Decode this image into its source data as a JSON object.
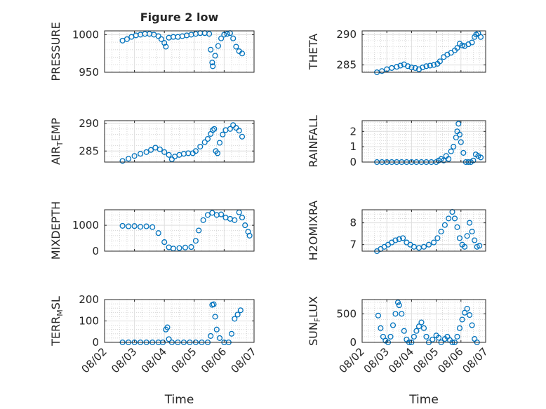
{
  "figure": {
    "title": "Figure 2 low",
    "xlabel": "Time",
    "x_tick_labels": [
      "08/02",
      "08/03",
      "08/04",
      "08/05",
      "08/06",
      "08/07"
    ]
  },
  "chart_data": [
    {
      "type": "scatter",
      "title": "Figure 2 low",
      "xlabel": "",
      "ylabel": "PRESSURE",
      "x_range": [
        "08/02",
        "08/07"
      ],
      "ylim": [
        950,
        1005
      ],
      "yticks": [
        950,
        1000
      ],
      "grid": "on",
      "marker": "o",
      "color": "#0072bd",
      "points": [
        [
          2.6,
          992
        ],
        [
          2.75,
          994
        ],
        [
          2.9,
          997
        ],
        [
          3.05,
          999
        ],
        [
          3.2,
          1000
        ],
        [
          3.35,
          1001
        ],
        [
          3.5,
          1001
        ],
        [
          3.65,
          1000
        ],
        [
          3.8,
          998
        ],
        [
          3.9,
          994
        ],
        [
          4.0,
          989
        ],
        [
          4.05,
          984
        ],
        [
          4.15,
          996
        ],
        [
          4.3,
          997
        ],
        [
          4.45,
          997
        ],
        [
          4.6,
          998
        ],
        [
          4.75,
          999
        ],
        [
          4.9,
          1000
        ],
        [
          5.05,
          1001
        ],
        [
          5.2,
          1002
        ],
        [
          5.35,
          1002
        ],
        [
          5.5,
          1001
        ],
        [
          5.55,
          980
        ],
        [
          5.6,
          963
        ],
        [
          5.62,
          958
        ],
        [
          5.7,
          972
        ],
        [
          5.8,
          985
        ],
        [
          5.9,
          995
        ],
        [
          6.0,
          1000
        ],
        [
          6.1,
          1001
        ],
        [
          6.2,
          1002
        ],
        [
          6.3,
          995
        ],
        [
          6.4,
          984
        ],
        [
          6.5,
          978
        ],
        [
          6.6,
          975
        ]
      ]
    },
    {
      "type": "scatter",
      "title": "",
      "xlabel": "",
      "ylabel": "THETA",
      "x_range": [
        "08/02",
        "08/07"
      ],
      "ylim": [
        283.8,
        290.6
      ],
      "yticks": [
        285,
        290
      ],
      "grid": "on",
      "marker": "o",
      "color": "#0072bd",
      "points": [
        [
          2.6,
          283.8
        ],
        [
          2.8,
          284.0
        ],
        [
          3.0,
          284.3
        ],
        [
          3.2,
          284.5
        ],
        [
          3.4,
          284.7
        ],
        [
          3.55,
          284.9
        ],
        [
          3.7,
          285.1
        ],
        [
          3.85,
          284.8
        ],
        [
          4.0,
          284.6
        ],
        [
          4.15,
          284.5
        ],
        [
          4.3,
          284.3
        ],
        [
          4.45,
          284.6
        ],
        [
          4.6,
          284.8
        ],
        [
          4.75,
          284.9
        ],
        [
          4.9,
          285.0
        ],
        [
          5.05,
          285.2
        ],
        [
          5.15,
          285.6
        ],
        [
          5.3,
          286.3
        ],
        [
          5.45,
          286.7
        ],
        [
          5.6,
          287.0
        ],
        [
          5.75,
          287.4
        ],
        [
          5.85,
          287.8
        ],
        [
          5.95,
          288.5
        ],
        [
          6.05,
          288.2
        ],
        [
          6.15,
          288.1
        ],
        [
          6.3,
          288.4
        ],
        [
          6.45,
          288.7
        ],
        [
          6.55,
          289.6
        ],
        [
          6.62,
          290.0
        ],
        [
          6.7,
          290.2
        ],
        [
          6.8,
          289.6
        ]
      ]
    },
    {
      "type": "scatter",
      "title": "",
      "xlabel": "",
      "ylabel": "AIR_TEMP",
      "x_range": [
        "08/02",
        "08/07"
      ],
      "ylim": [
        283.0,
        290.5
      ],
      "yticks": [
        285,
        290
      ],
      "grid": "on",
      "marker": "o",
      "color": "#0072bd",
      "points": [
        [
          2.6,
          283.2
        ],
        [
          2.8,
          283.6
        ],
        [
          3.0,
          284.1
        ],
        [
          3.2,
          284.5
        ],
        [
          3.4,
          284.8
        ],
        [
          3.55,
          285.2
        ],
        [
          3.7,
          285.6
        ],
        [
          3.85,
          285.3
        ],
        [
          4.0,
          284.8
        ],
        [
          4.15,
          284.3
        ],
        [
          4.25,
          283.5
        ],
        [
          4.35,
          284.0
        ],
        [
          4.5,
          284.3
        ],
        [
          4.65,
          284.5
        ],
        [
          4.8,
          284.6
        ],
        [
          4.95,
          284.6
        ],
        [
          5.05,
          285.0
        ],
        [
          5.2,
          285.8
        ],
        [
          5.35,
          286.6
        ],
        [
          5.45,
          287.2
        ],
        [
          5.55,
          288.1
        ],
        [
          5.62,
          288.8
        ],
        [
          5.67,
          289.0
        ],
        [
          5.72,
          285.0
        ],
        [
          5.78,
          284.6
        ],
        [
          5.85,
          286.5
        ],
        [
          5.95,
          288.0
        ],
        [
          6.05,
          288.8
        ],
        [
          6.2,
          289.0
        ],
        [
          6.3,
          289.7
        ],
        [
          6.4,
          289.2
        ],
        [
          6.5,
          288.7
        ],
        [
          6.6,
          287.6
        ]
      ]
    },
    {
      "type": "scatter",
      "title": "",
      "xlabel": "",
      "ylabel": "RAINFALL",
      "x_range": [
        "08/02",
        "08/07"
      ],
      "ylim": [
        0,
        2.7
      ],
      "yticks": [
        0,
        1,
        2
      ],
      "grid": "on",
      "marker": "o",
      "color": "#0072bd",
      "points": [
        [
          2.6,
          0
        ],
        [
          2.8,
          0
        ],
        [
          3.0,
          0
        ],
        [
          3.2,
          0
        ],
        [
          3.4,
          0
        ],
        [
          3.6,
          0
        ],
        [
          3.8,
          0
        ],
        [
          4.0,
          0
        ],
        [
          4.2,
          0
        ],
        [
          4.4,
          0
        ],
        [
          4.6,
          0
        ],
        [
          4.8,
          0
        ],
        [
          5.0,
          0
        ],
        [
          5.1,
          0.1
        ],
        [
          5.2,
          0.2
        ],
        [
          5.3,
          0.1
        ],
        [
          5.4,
          0.4
        ],
        [
          5.5,
          0.2
        ],
        [
          5.6,
          0.7
        ],
        [
          5.7,
          1.0
        ],
        [
          5.8,
          1.6
        ],
        [
          5.85,
          2.0
        ],
        [
          5.9,
          2.5
        ],
        [
          5.95,
          1.8
        ],
        [
          6.0,
          1.3
        ],
        [
          6.1,
          0.6
        ],
        [
          6.2,
          0
        ],
        [
          6.3,
          0
        ],
        [
          6.4,
          0
        ],
        [
          6.5,
          0.1
        ],
        [
          6.6,
          0.5
        ],
        [
          6.7,
          0.4
        ],
        [
          6.8,
          0.3
        ]
      ]
    },
    {
      "type": "scatter",
      "title": "",
      "xlabel": "",
      "ylabel": "MIXDEPTH",
      "x_range": [
        "08/02",
        "08/07"
      ],
      "ylim": [
        0,
        1600
      ],
      "yticks": [
        0,
        1000
      ],
      "grid": "on",
      "marker": "o",
      "color": "#0072bd",
      "points": [
        [
          2.6,
          980
        ],
        [
          2.8,
          960
        ],
        [
          3.0,
          970
        ],
        [
          3.2,
          940
        ],
        [
          3.4,
          960
        ],
        [
          3.6,
          930
        ],
        [
          3.8,
          700
        ],
        [
          4.0,
          350
        ],
        [
          4.15,
          150
        ],
        [
          4.3,
          100
        ],
        [
          4.5,
          120
        ],
        [
          4.7,
          140
        ],
        [
          4.9,
          160
        ],
        [
          5.05,
          400
        ],
        [
          5.15,
          800
        ],
        [
          5.3,
          1200
        ],
        [
          5.45,
          1400
        ],
        [
          5.6,
          1480
        ],
        [
          5.75,
          1400
        ],
        [
          5.9,
          1420
        ],
        [
          6.05,
          1300
        ],
        [
          6.2,
          1250
        ],
        [
          6.35,
          1200
        ],
        [
          6.5,
          1500
        ],
        [
          6.6,
          1300
        ],
        [
          6.7,
          1000
        ],
        [
          6.8,
          750
        ],
        [
          6.85,
          600
        ]
      ]
    },
    {
      "type": "scatter",
      "title": "",
      "xlabel": "",
      "ylabel": "H2OMIXRA",
      "x_range": [
        "08/02",
        "08/07"
      ],
      "ylim": [
        6.7,
        8.6
      ],
      "yticks": [
        7,
        8
      ],
      "grid": "on",
      "marker": "o",
      "color": "#0072bd",
      "points": [
        [
          2.6,
          6.7
        ],
        [
          2.75,
          6.8
        ],
        [
          2.9,
          6.9
        ],
        [
          3.05,
          7.0
        ],
        [
          3.2,
          7.1
        ],
        [
          3.35,
          7.2
        ],
        [
          3.5,
          7.25
        ],
        [
          3.65,
          7.3
        ],
        [
          3.8,
          7.1
        ],
        [
          3.95,
          7.0
        ],
        [
          4.1,
          6.9
        ],
        [
          4.3,
          6.85
        ],
        [
          4.5,
          6.9
        ],
        [
          4.7,
          7.0
        ],
        [
          4.9,
          7.1
        ],
        [
          5.05,
          7.3
        ],
        [
          5.2,
          7.6
        ],
        [
          5.35,
          7.9
        ],
        [
          5.5,
          8.2
        ],
        [
          5.65,
          8.5
        ],
        [
          5.75,
          8.2
        ],
        [
          5.85,
          7.8
        ],
        [
          5.95,
          7.3
        ],
        [
          6.05,
          7.0
        ],
        [
          6.15,
          6.9
        ],
        [
          6.25,
          7.4
        ],
        [
          6.35,
          8.0
        ],
        [
          6.45,
          7.6
        ],
        [
          6.55,
          7.2
        ],
        [
          6.65,
          6.9
        ],
        [
          6.75,
          6.95
        ]
      ]
    },
    {
      "type": "scatter",
      "title": "",
      "xlabel": "Time",
      "ylabel": "TERR_MSL",
      "x_range": [
        "08/02",
        "08/07"
      ],
      "ylim": [
        0,
        200
      ],
      "yticks": [
        0,
        100,
        200
      ],
      "grid": "on",
      "marker": "o",
      "color": "#0072bd",
      "points": [
        [
          2.6,
          0
        ],
        [
          2.8,
          0
        ],
        [
          3.0,
          0
        ],
        [
          3.2,
          0
        ],
        [
          3.4,
          0
        ],
        [
          3.6,
          0
        ],
        [
          3.8,
          0
        ],
        [
          3.95,
          0
        ],
        [
          4.05,
          60
        ],
        [
          4.1,
          70
        ],
        [
          4.15,
          15
        ],
        [
          4.25,
          0
        ],
        [
          4.45,
          0
        ],
        [
          4.65,
          0
        ],
        [
          4.85,
          0
        ],
        [
          5.05,
          0
        ],
        [
          5.25,
          0
        ],
        [
          5.45,
          0
        ],
        [
          5.55,
          30
        ],
        [
          5.6,
          175
        ],
        [
          5.65,
          178
        ],
        [
          5.7,
          120
        ],
        [
          5.75,
          60
        ],
        [
          5.85,
          20
        ],
        [
          6.0,
          0
        ],
        [
          6.15,
          0
        ],
        [
          6.25,
          40
        ],
        [
          6.35,
          110
        ],
        [
          6.45,
          130
        ],
        [
          6.55,
          150
        ]
      ]
    },
    {
      "type": "scatter",
      "title": "",
      "xlabel": "Time",
      "ylabel": "SUN_FLUX",
      "x_range": [
        "08/02",
        "08/07"
      ],
      "ylim": [
        0,
        750
      ],
      "yticks": [
        0,
        500
      ],
      "grid": "on",
      "marker": "o",
      "color": "#0072bd",
      "points": [
        [
          2.65,
          470
        ],
        [
          2.75,
          250
        ],
        [
          2.85,
          100
        ],
        [
          2.95,
          30
        ],
        [
          3.05,
          0
        ],
        [
          3.15,
          100
        ],
        [
          3.25,
          300
        ],
        [
          3.35,
          500
        ],
        [
          3.45,
          700
        ],
        [
          3.5,
          650
        ],
        [
          3.6,
          500
        ],
        [
          3.7,
          200
        ],
        [
          3.8,
          50
        ],
        [
          3.9,
          0
        ],
        [
          4.0,
          0
        ],
        [
          4.1,
          100
        ],
        [
          4.2,
          200
        ],
        [
          4.3,
          280
        ],
        [
          4.4,
          350
        ],
        [
          4.5,
          250
        ],
        [
          4.6,
          100
        ],
        [
          4.7,
          0
        ],
        [
          4.85,
          50
        ],
        [
          5.0,
          120
        ],
        [
          5.1,
          80
        ],
        [
          5.2,
          0
        ],
        [
          5.35,
          60
        ],
        [
          5.45,
          100
        ],
        [
          5.55,
          40
        ],
        [
          5.65,
          0
        ],
        [
          5.75,
          0
        ],
        [
          5.85,
          100
        ],
        [
          5.95,
          250
        ],
        [
          6.05,
          400
        ],
        [
          6.15,
          520
        ],
        [
          6.25,
          590
        ],
        [
          6.35,
          480
        ],
        [
          6.45,
          300
        ],
        [
          6.55,
          60
        ],
        [
          6.65,
          0
        ]
      ]
    }
  ]
}
